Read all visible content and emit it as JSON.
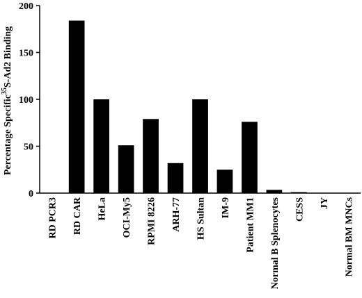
{
  "chart_data": {
    "type": "bar",
    "title": "",
    "xlabel": "",
    "ylabel": "Percentage Specific",
    "ylabel_sup": "35",
    "ylabel_tail": "S-Ad2 Binding",
    "ylim": [
      0,
      200
    ],
    "yticks": [
      0,
      50,
      100,
      150,
      200
    ],
    "bar_color": "#000000",
    "categories": [
      "RD PCR3",
      "RD CAR",
      "HeLa",
      "OCI-My5",
      "RPMI 8226",
      "ARH-77",
      "HS Sultan",
      "IM-9",
      "Patient MM1",
      "Normal B Splenocytes",
      "CESS",
      "JY",
      "Normal BM MNCs"
    ],
    "values": [
      0,
      184,
      100,
      51,
      79,
      32,
      100,
      25,
      76,
      3.5,
      1,
      0,
      0
    ]
  }
}
